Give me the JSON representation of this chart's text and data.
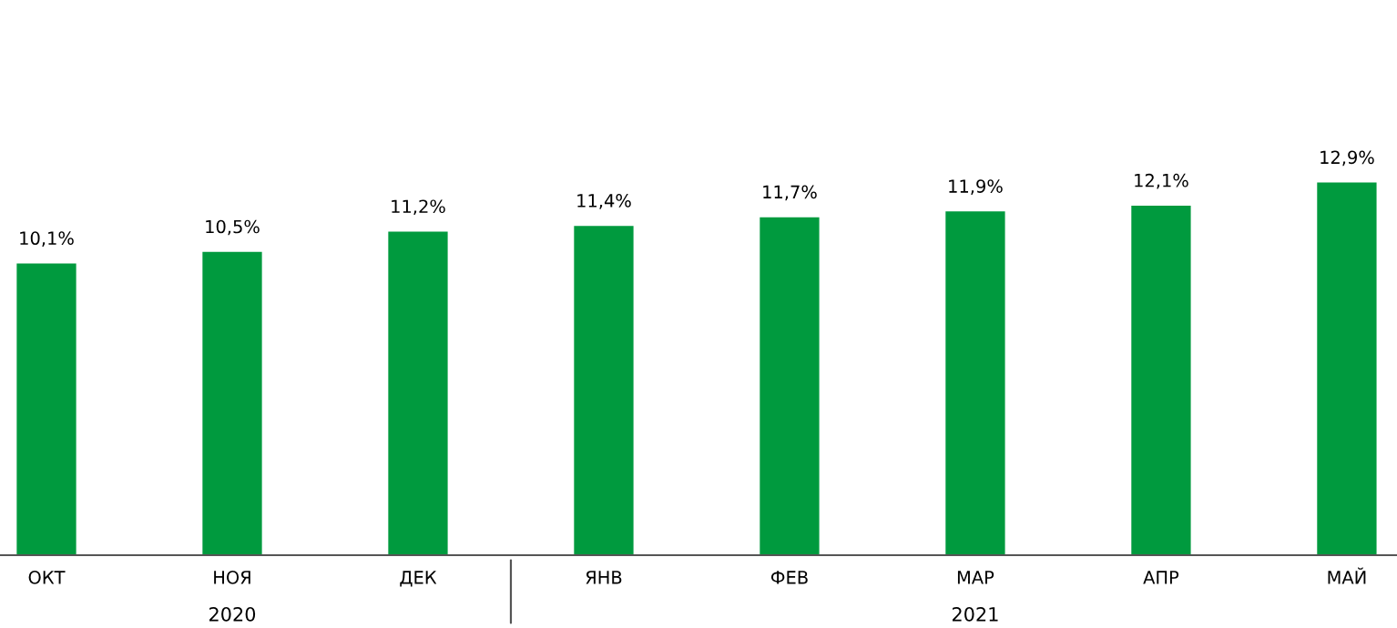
{
  "chart_data": {
    "type": "bar",
    "categories": [
      "ОКТ",
      "НОЯ",
      "ДЕК",
      "ЯНВ",
      "ФЕВ",
      "МАР",
      "АПР",
      "МАЙ"
    ],
    "values": [
      10.1,
      10.5,
      11.2,
      11.4,
      11.7,
      11.9,
      12.1,
      12.9
    ],
    "value_labels": [
      "10,1%",
      "10,5%",
      "11,2%",
      "11,4%",
      "11,7%",
      "11,9%",
      "12,1%",
      "12,9%"
    ],
    "color": "#009a3e",
    "grid": false,
    "legend": false,
    "annotations": [
      "2020",
      "2021"
    ]
  }
}
